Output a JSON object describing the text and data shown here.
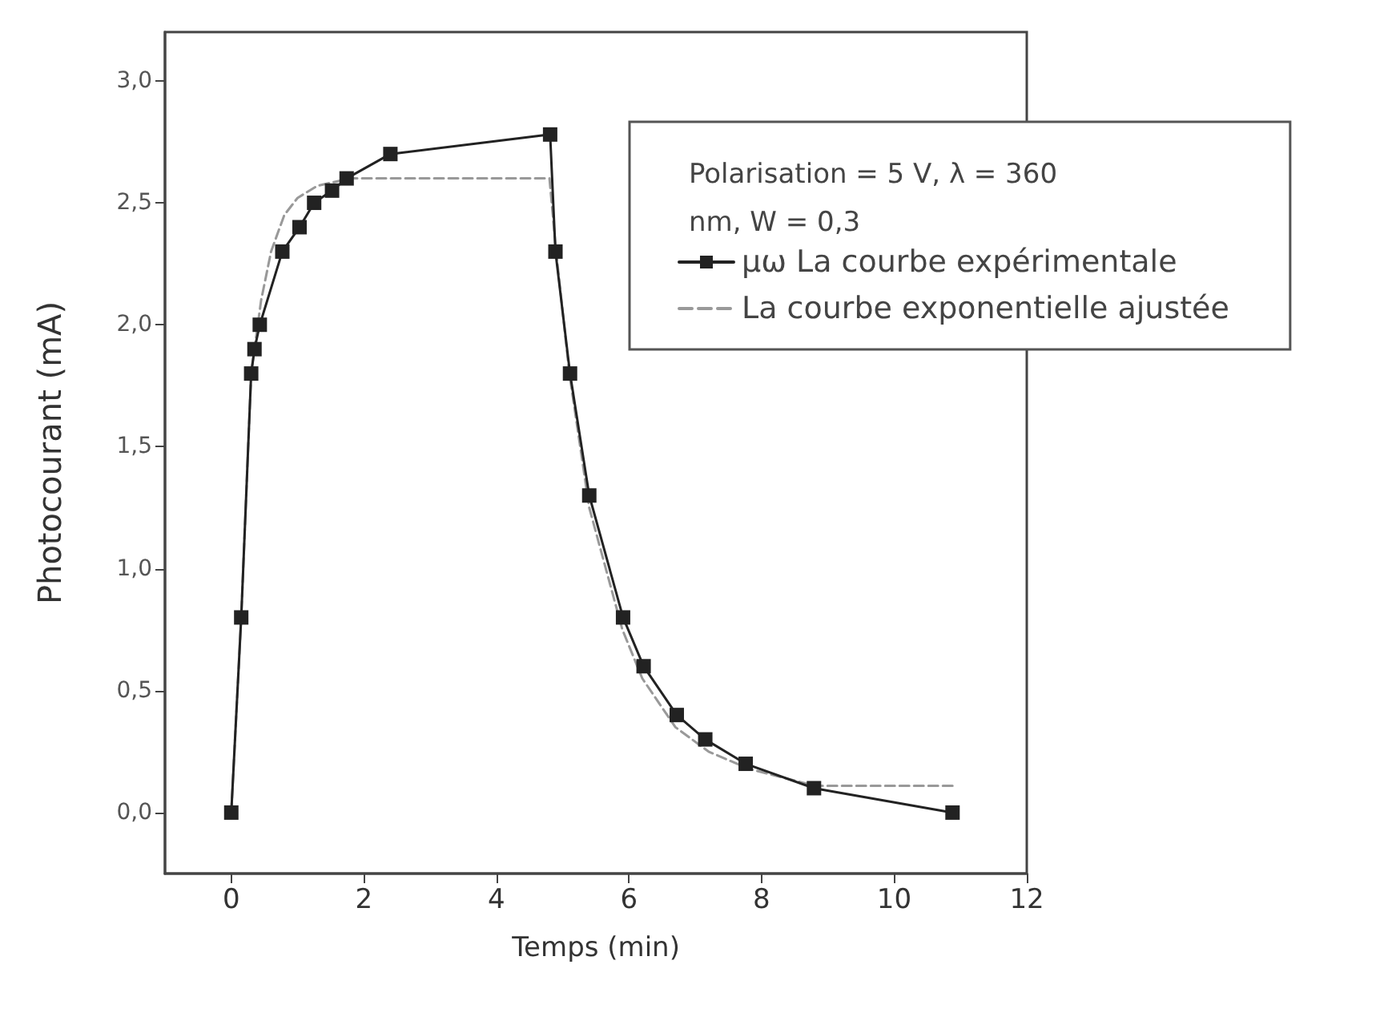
{
  "chart_data": {
    "type": "line",
    "xlabel": "Temps (min)",
    "ylabel": "Photocourant (mA)",
    "legend_title": "Polarisation = 5 V, λ = 360 nm, W = 0,3",
    "xlim": [
      -1,
      12
    ],
    "xticks": [
      0,
      2,
      4,
      6,
      8,
      10,
      12
    ],
    "ylim": [
      -0.25,
      3.2
    ],
    "yticks": [
      {
        "value": 0,
        "label": "0,0"
      },
      {
        "value": 0.5,
        "label": "0,5"
      },
      {
        "value": 1,
        "label": "1,0"
      },
      {
        "value": 1.5,
        "label": "1,5"
      },
      {
        "value": 2,
        "label": "2,0"
      },
      {
        "value": 2.5,
        "label": "2,5"
      },
      {
        "value": 3,
        "label": "3,0"
      }
    ],
    "grid": false,
    "legend": "top right",
    "series": [
      {
        "name": "μω La courbe expérimentale",
        "color": "#222222",
        "marker": "square",
        "line_style": "solid",
        "x": [
          0,
          0.15,
          0.3,
          0.35,
          0.43,
          0.77,
          1.03,
          1.25,
          1.52,
          1.74,
          2.4,
          4.81,
          4.89,
          5.11,
          5.4,
          5.91,
          6.22,
          6.72,
          7.15,
          7.76,
          8.79,
          10.88
        ],
        "values": [
          0,
          0.8,
          1.8,
          1.9,
          2.0,
          2.3,
          2.4,
          2.5,
          2.55,
          2.6,
          2.7,
          2.78,
          2.3,
          1.8,
          1.3,
          0.8,
          0.6,
          0.4,
          0.3,
          0.2,
          0.1,
          0
        ]
      },
      {
        "name": "La courbe exponentielle ajustée",
        "color": "#999999",
        "marker": "none",
        "line_style": "dashed",
        "x": [
          0,
          0.15,
          0.3,
          0.45,
          0.6,
          0.8,
          1.0,
          1.3,
          1.8,
          4.8,
          4.9,
          5.1,
          5.4,
          5.9,
          6.2,
          6.7,
          7.2,
          7.8,
          8.8,
          10.9
        ],
        "values": [
          0,
          0.8,
          1.8,
          2.1,
          2.3,
          2.45,
          2.52,
          2.57,
          2.6,
          2.6,
          2.3,
          1.8,
          1.25,
          0.75,
          0.55,
          0.35,
          0.25,
          0.18,
          0.11,
          0.11
        ]
      }
    ]
  }
}
